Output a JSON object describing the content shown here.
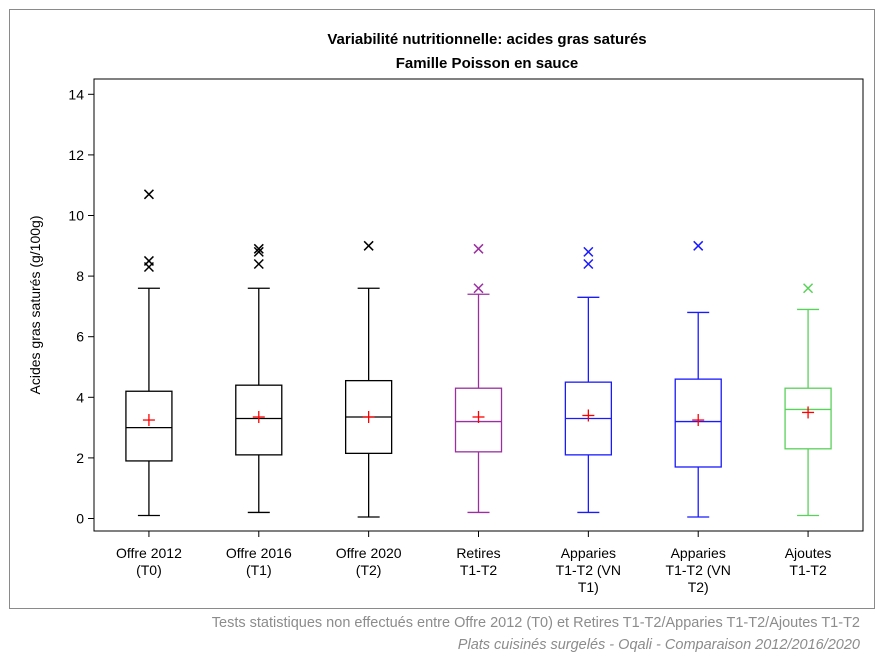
{
  "chart_data": {
    "type": "box",
    "title": "Variabilité nutritionnelle: acides gras saturés",
    "subtitle": "Famille Poisson en sauce",
    "ylabel": "Acides gras saturés (g/100g)",
    "xlabel": "",
    "ylim": [
      -0.2,
      14.2
    ],
    "yticks": [
      0,
      2,
      4,
      6,
      8,
      10,
      12,
      14
    ],
    "grid": false,
    "categories": [
      [
        "Offre 2012",
        "(T0)"
      ],
      [
        "Offre 2016",
        "(T1)"
      ],
      [
        "Offre 2020",
        "(T2)"
      ],
      [
        "Retires",
        "T1-T2"
      ],
      [
        "Apparies",
        "T1-T2 (VN",
        "T1)"
      ],
      [
        "Apparies",
        "T1-T2 (VN",
        "T2)"
      ],
      [
        "Ajoutes",
        "T1-T2"
      ]
    ],
    "boxes": [
      {
        "color": "#000000",
        "min": 0.1,
        "q1": 1.9,
        "median": 3.0,
        "q3": 4.2,
        "max": 7.6,
        "mean": 3.25,
        "outliers": [
          8.3,
          8.5,
          10.7
        ]
      },
      {
        "color": "#000000",
        "min": 0.2,
        "q1": 2.1,
        "median": 3.3,
        "q3": 4.4,
        "max": 7.6,
        "mean": 3.35,
        "outliers": [
          8.4,
          8.8,
          8.9
        ]
      },
      {
        "color": "#000000",
        "min": 0.05,
        "q1": 2.15,
        "median": 3.35,
        "q3": 4.55,
        "max": 7.6,
        "mean": 3.35,
        "outliers": [
          9.0
        ]
      },
      {
        "color": "#9a2fa0",
        "min": 0.2,
        "q1": 2.2,
        "median": 3.2,
        "q3": 4.3,
        "max": 7.4,
        "mean": 3.35,
        "outliers": [
          7.6,
          8.9
        ]
      },
      {
        "color": "#1a1aff",
        "min": 0.2,
        "q1": 2.1,
        "median": 3.3,
        "q3": 4.5,
        "max": 7.3,
        "mean": 3.4,
        "outliers": [
          8.4,
          8.8
        ]
      },
      {
        "color": "#1a1aff",
        "min": 0.05,
        "q1": 1.7,
        "median": 3.2,
        "q3": 4.6,
        "max": 6.8,
        "mean": 3.25,
        "outliers": [
          9.0
        ]
      },
      {
        "color": "#5ad15a",
        "min": 0.1,
        "q1": 2.3,
        "median": 3.6,
        "q3": 4.3,
        "max": 6.9,
        "mean": 3.5,
        "outliers": [
          7.6
        ]
      }
    ],
    "mean_marker_color": "#ff0000"
  },
  "footnotes": {
    "line1": "Tests statistiques non effectués entre Offre 2012 (T0) et Retires T1-T2/Apparies T1-T2/Ajoutes T1-T2",
    "line2": "Plats cuisinés surgelés - Oqali - Comparaison 2012/2016/2020"
  }
}
